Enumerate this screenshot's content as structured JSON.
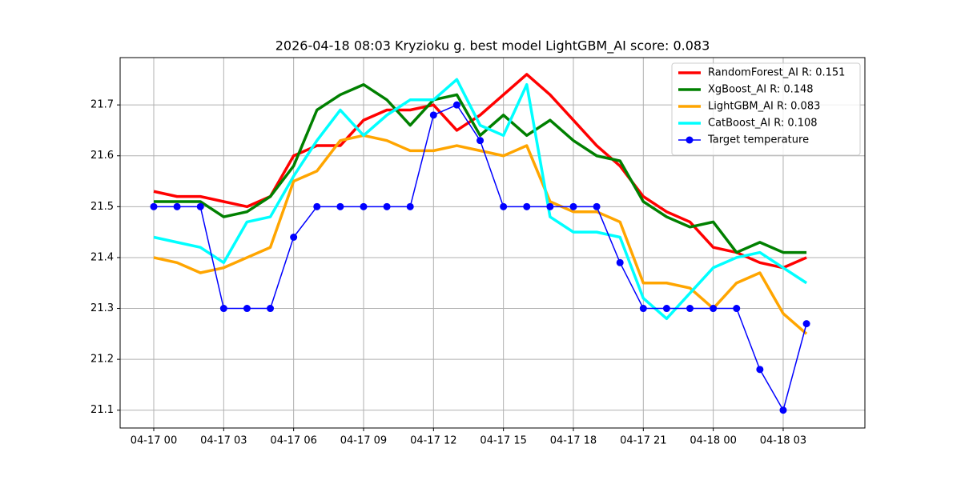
{
  "chart_data": {
    "type": "line",
    "title": "2026-04-18 08:03 Kryzioku g. best model LightGBM_AI score: 0.083",
    "categories": [
      "04-17 00",
      null,
      null,
      "04-17 03",
      null,
      null,
      "04-17 06",
      null,
      null,
      "04-17 09",
      null,
      null,
      "04-17 12",
      null,
      null,
      "04-17 15",
      null,
      null,
      "04-17 18",
      null,
      null,
      "04-17 21",
      null,
      null,
      "04-18 00",
      null,
      null,
      "04-18 03",
      null
    ],
    "series": [
      {
        "name": "RandomForest_AI R: 0.151",
        "color": "#ff0000",
        "values": [
          21.53,
          21.52,
          21.52,
          21.51,
          21.5,
          21.52,
          21.6,
          21.62,
          21.62,
          21.67,
          21.69,
          21.69,
          21.7,
          21.65,
          21.68,
          21.72,
          21.76,
          21.72,
          21.67,
          21.62,
          21.58,
          21.52,
          21.49,
          21.47,
          21.42,
          21.41,
          21.39,
          21.38,
          21.4
        ]
      },
      {
        "name": "XgBoost_AI R: 0.148",
        "color": "#008000",
        "values": [
          21.51,
          21.51,
          21.51,
          21.48,
          21.49,
          21.52,
          21.58,
          21.69,
          21.72,
          21.74,
          21.71,
          21.66,
          21.71,
          21.72,
          21.64,
          21.68,
          21.64,
          21.67,
          21.63,
          21.6,
          21.59,
          21.51,
          21.48,
          21.46,
          21.47,
          21.41,
          21.43,
          21.41,
          21.41
        ]
      },
      {
        "name": "LightGBM_AI R: 0.083",
        "color": "#ffa500",
        "values": [
          21.4,
          21.39,
          21.37,
          21.38,
          21.4,
          21.42,
          21.55,
          21.57,
          21.63,
          21.64,
          21.63,
          21.61,
          21.61,
          21.62,
          21.61,
          21.6,
          21.62,
          21.51,
          21.49,
          21.49,
          21.47,
          21.35,
          21.35,
          21.34,
          21.3,
          21.35,
          21.37,
          21.29,
          21.25
        ]
      },
      {
        "name": "CatBoost_AI R: 0.108",
        "color": "#00ffff",
        "values": [
          21.44,
          21.43,
          21.42,
          21.39,
          21.47,
          21.48,
          21.56,
          21.63,
          21.69,
          21.64,
          21.68,
          21.71,
          21.71,
          21.75,
          21.66,
          21.64,
          21.74,
          21.48,
          21.45,
          21.45,
          21.44,
          21.32,
          21.28,
          21.33,
          21.38,
          21.4,
          21.41,
          21.38,
          21.35
        ]
      },
      {
        "name": "Target temperature",
        "color": "#0000ff",
        "marker": "o",
        "values": [
          21.5,
          21.5,
          21.5,
          21.3,
          21.3,
          21.3,
          21.44,
          21.5,
          21.5,
          21.5,
          21.5,
          21.5,
          21.68,
          21.7,
          21.63,
          21.5,
          21.5,
          21.5,
          21.5,
          21.5,
          21.39,
          21.3,
          21.3,
          21.3,
          21.3,
          21.3,
          21.18,
          21.1,
          21.27
        ]
      }
    ],
    "ylim": [
      21.065,
      21.793
    ],
    "yticks": [
      21.1,
      21.2,
      21.3,
      21.4,
      21.5,
      21.6,
      21.7
    ],
    "grid": true,
    "legend": "upper right"
  }
}
